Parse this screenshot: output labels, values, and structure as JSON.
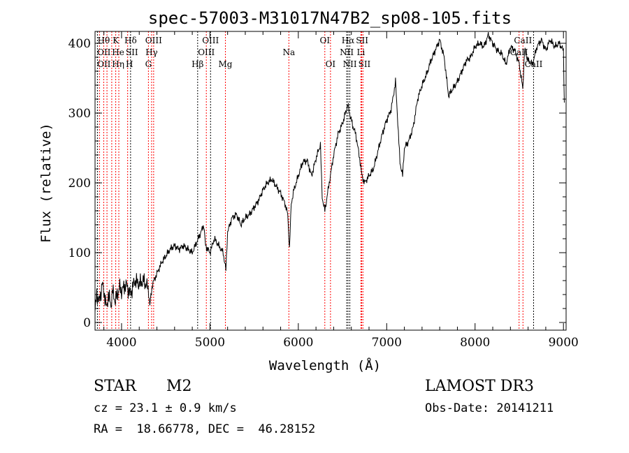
{
  "chart_data": {
    "type": "line",
    "title": "spec-57003-M31017N47B2_sp08-105.fits",
    "xlabel": "Wavelength (Å)",
    "ylabel": "Flux (relative)",
    "xlim": [
      3700,
      9030
    ],
    "ylim": [
      -11,
      417
    ],
    "xticks": [
      4000,
      5000,
      6000,
      7000,
      8000,
      9000
    ],
    "yticks": [
      0,
      100,
      200,
      300,
      400
    ],
    "grid": false,
    "series": [
      {
        "name": "flux",
        "color": "#000000",
        "x": [
          3700,
          3720,
          3750,
          3780,
          3800,
          3830,
          3850,
          3880,
          3900,
          3930,
          3950,
          3980,
          4000,
          4050,
          4100,
          4150,
          4200,
          4250,
          4300,
          4320,
          4350,
          4400,
          4450,
          4500,
          4550,
          4600,
          4650,
          4700,
          4750,
          4800,
          4850,
          4900,
          4930,
          4950,
          5000,
          5050,
          5100,
          5150,
          5180,
          5200,
          5250,
          5300,
          5350,
          5400,
          5450,
          5500,
          5550,
          5600,
          5650,
          5700,
          5750,
          5800,
          5850,
          5880,
          5900,
          5920,
          5950,
          6000,
          6050,
          6100,
          6150,
          6200,
          6250,
          6270,
          6300,
          6350,
          6400,
          6450,
          6500,
          6560,
          6580,
          6620,
          6650,
          6700,
          6720,
          6750,
          6800,
          6850,
          6900,
          6950,
          7000,
          7050,
          7100,
          7120,
          7150,
          7180,
          7200,
          7250,
          7300,
          7350,
          7400,
          7450,
          7500,
          7550,
          7600,
          7650,
          7700,
          7750,
          7800,
          7850,
          7900,
          7950,
          8000,
          8050,
          8100,
          8150,
          8200,
          8250,
          8300,
          8350,
          8400,
          8450,
          8500,
          8540,
          8560,
          8600,
          8650,
          8700,
          8750,
          8800,
          8850,
          8900,
          8950,
          9000,
          9010
        ],
        "y": [
          15,
          40,
          30,
          55,
          45,
          20,
          40,
          25,
          45,
          30,
          40,
          50,
          45,
          55,
          40,
          60,
          55,
          60,
          50,
          25,
          55,
          70,
          85,
          95,
          105,
          110,
          105,
          110,
          105,
          100,
          115,
          130,
          140,
          110,
          100,
          120,
          110,
          100,
          75,
          130,
          150,
          155,
          140,
          150,
          155,
          165,
          175,
          190,
          200,
          205,
          195,
          185,
          170,
          155,
          105,
          170,
          190,
          210,
          230,
          232,
          210,
          235,
          255,
          180,
          160,
          200,
          240,
          270,
          285,
          312,
          300,
          280,
          270,
          230,
          210,
          200,
          210,
          220,
          245,
          270,
          290,
          305,
          345,
          300,
          230,
          210,
          250,
          260,
          280,
          320,
          340,
          355,
          375,
          390,
          405,
          380,
          325,
          335,
          345,
          360,
          375,
          380,
          395,
          400,
          395,
          412,
          400,
          390,
          385,
          370,
          395,
          390,
          370,
          335,
          390,
          375,
          370,
          395,
          405,
          390,
          405,
          395,
          400,
          390,
          315
        ]
      }
    ],
    "lines": [
      {
        "label": "Hθ",
        "wl": 3798,
        "row": 0,
        "color": "#ff0000"
      },
      {
        "label": "K",
        "wl": 3934,
        "row": 0,
        "color": "#ff0000"
      },
      {
        "label": "Hδ",
        "wl": 4102,
        "row": 0,
        "color": "#000000"
      },
      {
        "label": "OIII",
        "wl": 4363,
        "row": 0,
        "color": "#ff0000"
      },
      {
        "label": "OIII",
        "wl": 5007,
        "row": 0,
        "color": "#000000"
      },
      {
        "label": "OI",
        "wl": 6300,
        "row": 0,
        "color": "#ff0000"
      },
      {
        "label": "Hα",
        "wl": 6563,
        "row": 0,
        "color": "#000000"
      },
      {
        "label": "SII",
        "wl": 6717,
        "row": 0,
        "color": "#ff0000"
      },
      {
        "label": "CaII",
        "wl": 8542,
        "row": 0,
        "color": "#ff0000"
      },
      {
        "label": "OII",
        "wl": 3727,
        "row": 1,
        "color": "#000000"
      },
      {
        "label": "He",
        "wl": 3889,
        "row": 1,
        "color": "#ff0000"
      },
      {
        "label": "SII",
        "wl": 4069,
        "row": 1,
        "color": "#ff0000"
      },
      {
        "label": "Hγ",
        "wl": 4340,
        "row": 1,
        "color": "#ff0000"
      },
      {
        "label": "OIII",
        "wl": 4959,
        "row": 1,
        "color": "#ff0000"
      },
      {
        "label": "Na",
        "wl": 5893,
        "row": 1,
        "color": "#ff0000"
      },
      {
        "label": "NII",
        "wl": 6548,
        "row": 1,
        "color": "#000000"
      },
      {
        "label": "Li",
        "wl": 6708,
        "row": 1,
        "color": "#ff0000"
      },
      {
        "label": "CaII",
        "wl": 8498,
        "row": 1,
        "color": "#ff0000"
      },
      {
        "label": "OII",
        "wl": 3750,
        "row": 2,
        "color": "#ff0000"
      },
      {
        "label": "Hη",
        "wl": 3835,
        "row": 2,
        "color": "#ff0000"
      },
      {
        "label": "H",
        "wl": 3969,
        "row": 2,
        "color": "#ff0000"
      },
      {
        "label": "G",
        "wl": 4304,
        "row": 2,
        "color": "#ff0000"
      },
      {
        "label": "Hβ",
        "wl": 4861,
        "row": 2,
        "color": "#000000"
      },
      {
        "label": "Mg",
        "wl": 5175,
        "row": 2,
        "color": "#ff0000"
      },
      {
        "label": "OI",
        "wl": 6364,
        "row": 2,
        "color": "#ff0000"
      },
      {
        "label": "NII",
        "wl": 6583,
        "row": 2,
        "color": "#000000"
      },
      {
        "label": "SII",
        "wl": 6731,
        "row": 2,
        "color": "#ff0000"
      },
      {
        "label": "CaII",
        "wl": 8662,
        "row": 2,
        "color": "#000000"
      }
    ]
  },
  "info": {
    "class": "STAR",
    "subclass": "M2",
    "survey": "LAMOST DR3",
    "cz": "cz = 23.1 ± 0.9 km/s",
    "obsdate": "Obs-Date: 20141211",
    "radec": "RA =  18.66778, DEC =  46.28152"
  }
}
